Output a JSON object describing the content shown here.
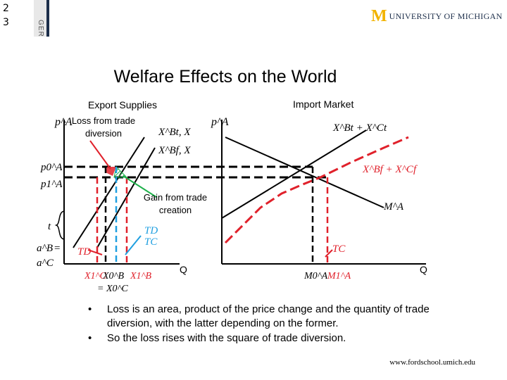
{
  "header": {
    "slide_number_top": "2",
    "slide_number_bottom": "3",
    "side_label": "GER",
    "logo_letter": "M",
    "logo_text": "UNIVERSITY OF MICHIGAN"
  },
  "title": "Welfare Effects on the World",
  "diagram": {
    "left_panel_label": "Export Supplies",
    "right_panel_label": "Import Market",
    "loss_label": "Loss from trade diversion",
    "gain_label": "Gain from trade creation",
    "left_y_axis": "p^A",
    "right_y_axis": "p^A",
    "p0_label": "p0^A",
    "p1_label": "p1^A",
    "t_label": "t",
    "aB_label": "a^B",
    "aC_label": "a^C",
    "eq_label": "=",
    "XBt_label": "X^Bt, X",
    "XBf_label": "X^Bf, X",
    "XBtXCt_label": "X^Bt + X^Ct",
    "XBfXCf_label": "X^Bf + X^Cf",
    "MA_label": "M^A",
    "TD_label_left": "TD",
    "TD_label_mid": "TD",
    "TC_label_mid": "TC",
    "TC_label_right": "TC",
    "Q_left": "Q",
    "Q_right": "Q",
    "x_labels_left": [
      "X1^C",
      "X0^B",
      "X1^B"
    ],
    "x_label_eq": "= X0^C",
    "x_labels_right": [
      "M0^A",
      "M1^A"
    ],
    "colors": {
      "red": "#e0212b",
      "blue": "#1f9fe0",
      "green": "#1db04a",
      "black": "#000000"
    }
  },
  "bullets": [
    "Loss is an area, product of the price change and the quantity of trade diversion, with the latter depending on the former.",
    "So the loss rises with the square of trade diversion."
  ],
  "footer_url": "www.fordschool.umich.edu"
}
